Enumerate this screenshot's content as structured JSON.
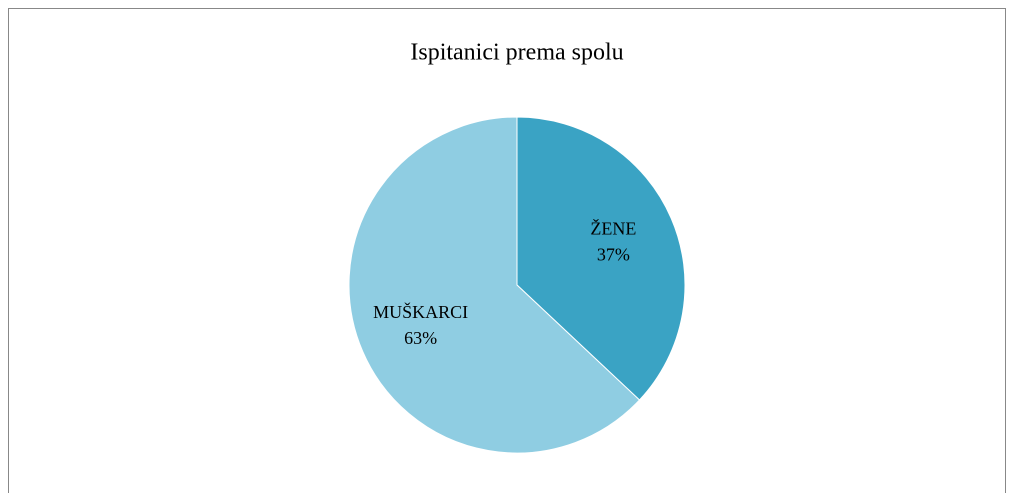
{
  "chart_data": {
    "type": "pie",
    "title": "Ispitanici prema spolu",
    "categories": [
      "ŽENE",
      "MUŠKARCI"
    ],
    "values": [
      37,
      63
    ],
    "value_labels": [
      "37%",
      "63%"
    ],
    "colors": [
      "#3aa3c4",
      "#8fcde2"
    ]
  }
}
